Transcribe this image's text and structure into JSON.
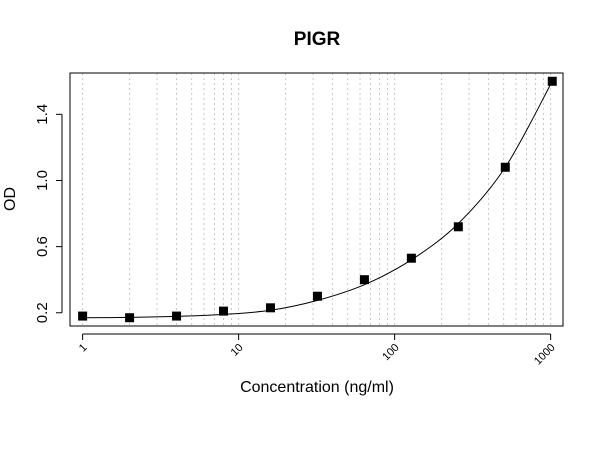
{
  "chart_data": {
    "type": "scatter",
    "title": "PIGR",
    "xlabel": "Concentration (ng/ml)",
    "ylabel": "OD",
    "x_scale": "log",
    "xlim": [
      0.83,
      1200
    ],
    "ylim": [
      0.12,
      1.65
    ],
    "x_ticks": [
      1,
      10,
      100,
      1000
    ],
    "x_tick_labels": [
      "1",
      "10",
      "100",
      "1000"
    ],
    "y_ticks": [
      0.2,
      0.6,
      1.0,
      1.4
    ],
    "y_tick_labels": [
      "0.2",
      "0.6",
      "1.0",
      "1.4"
    ],
    "grid": "vertical dotted lines at log minor ticks",
    "marker": "filled square",
    "color": "#000000",
    "points": [
      {
        "x": 1,
        "y": 0.18
      },
      {
        "x": 2,
        "y": 0.17
      },
      {
        "x": 4,
        "y": 0.18
      },
      {
        "x": 8,
        "y": 0.21
      },
      {
        "x": 16,
        "y": 0.23
      },
      {
        "x": 32,
        "y": 0.3
      },
      {
        "x": 64,
        "y": 0.4
      },
      {
        "x": 128,
        "y": 0.53
      },
      {
        "x": 256,
        "y": 0.72
      },
      {
        "x": 512,
        "y": 1.08
      },
      {
        "x": 1024,
        "y": 1.6
      }
    ],
    "fit_curve": {
      "x": [
        0.95,
        2,
        4,
        8,
        16,
        32,
        64,
        128,
        256,
        512,
        1024
      ],
      "y": [
        0.17,
        0.172,
        0.178,
        0.19,
        0.215,
        0.275,
        0.37,
        0.52,
        0.74,
        1.08,
        1.6
      ]
    }
  }
}
